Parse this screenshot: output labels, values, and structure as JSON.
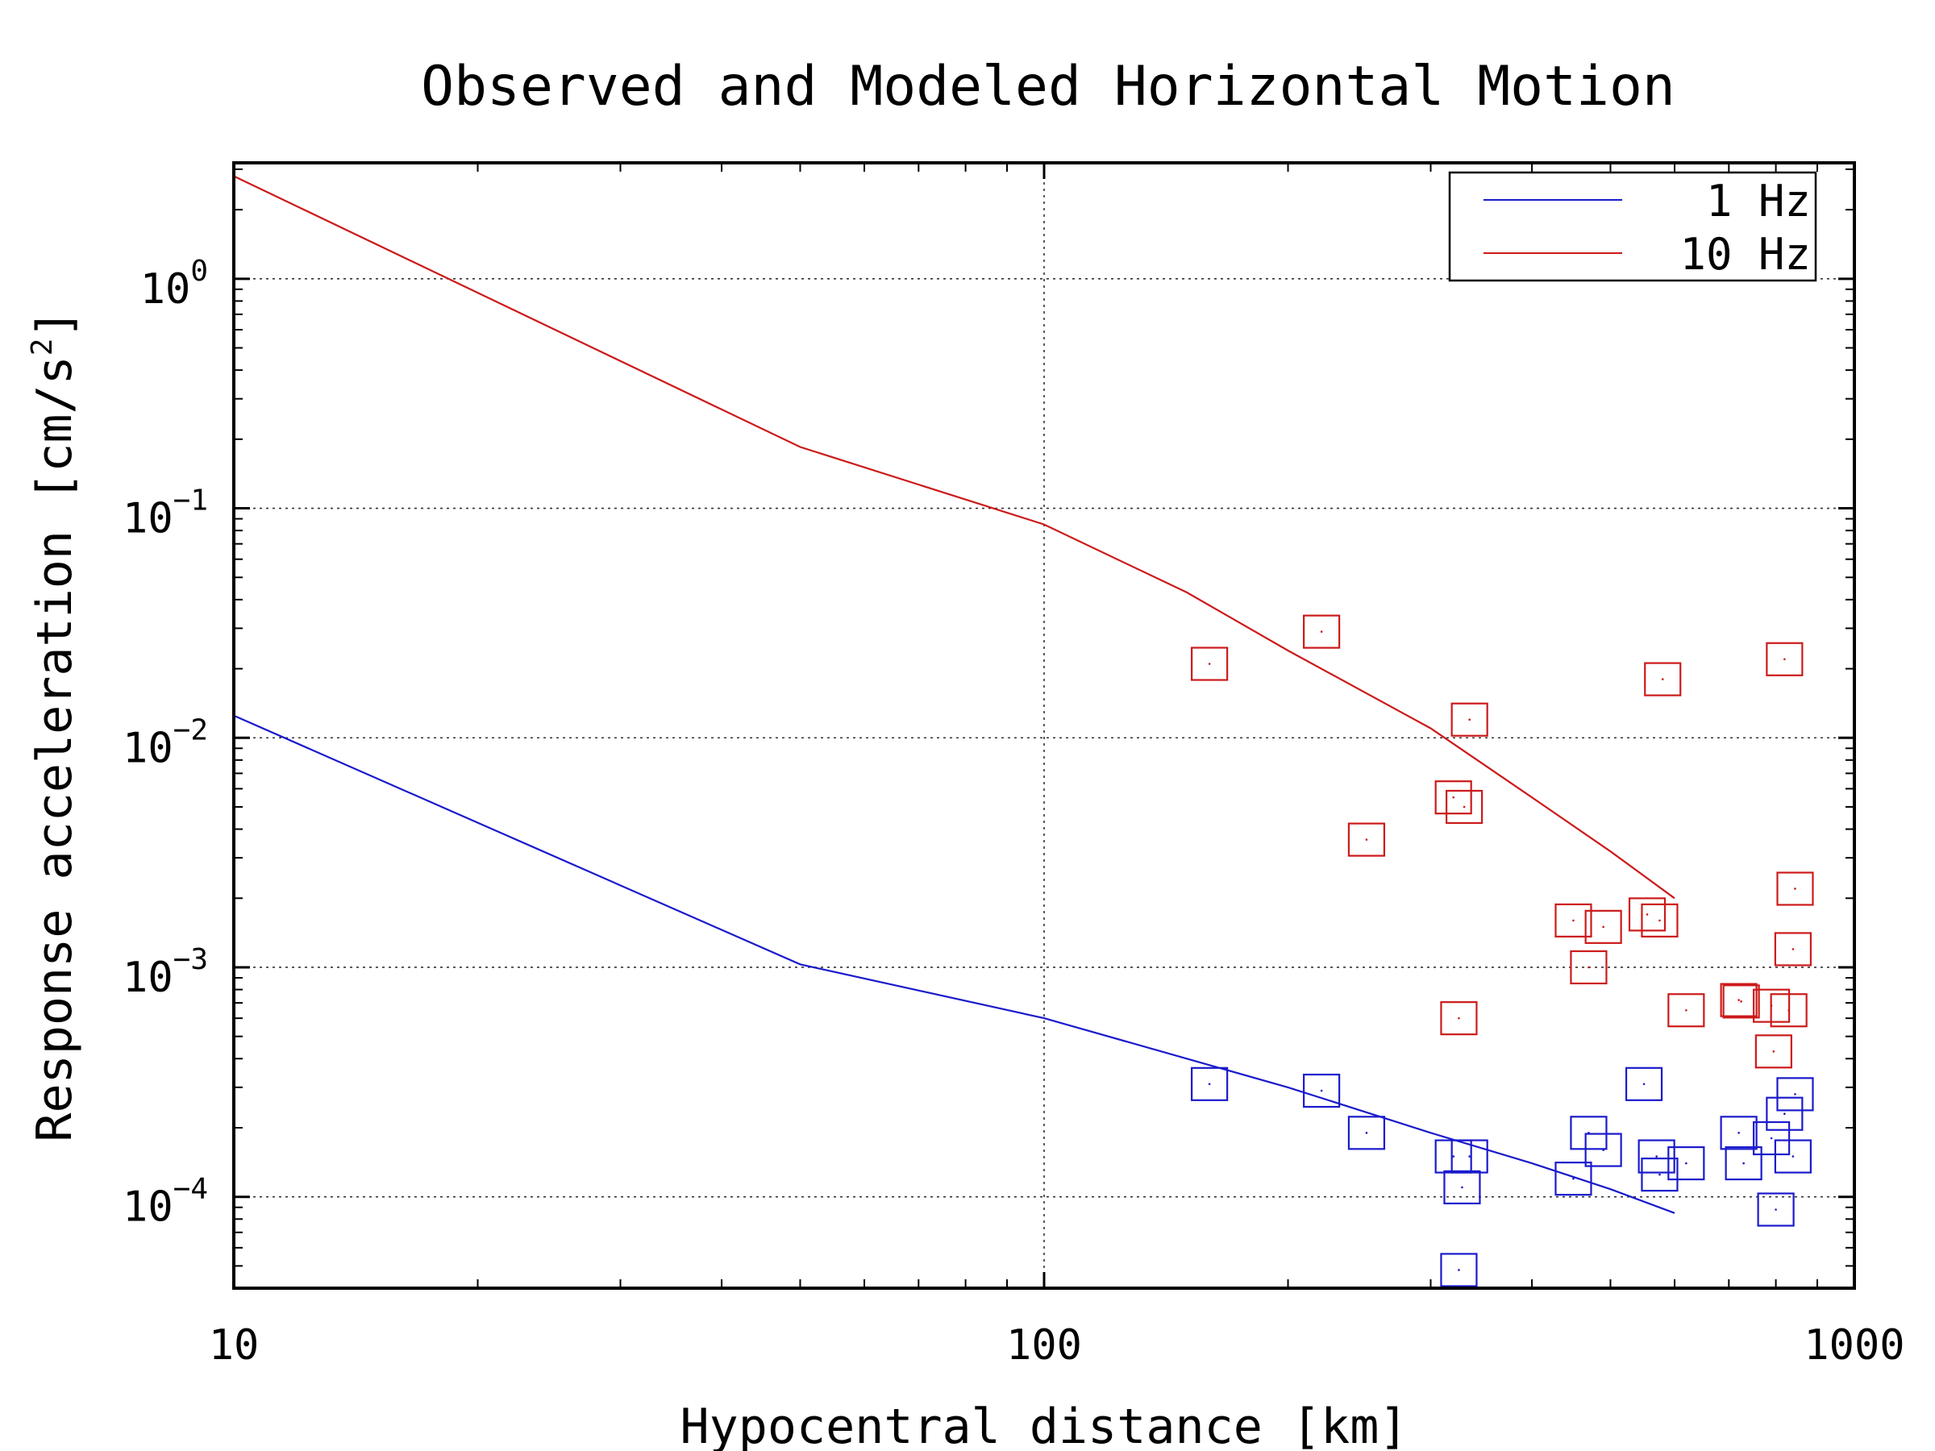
{
  "chart_data": {
    "type": "scatter",
    "title": "Observed and Modeled Horizontal Motion",
    "xlabel": "Hypocentral distance [km]",
    "ylabel": "Response acceleration [cm/s",
    "ylabel_sup": "2",
    "ylabel_end": "]",
    "xscale": "log",
    "yscale": "log",
    "xlim": [
      10,
      1000
    ],
    "ylim": [
      4e-05,
      3.2
    ],
    "grid": true,
    "legend_position": "top-right",
    "x_ticks": [
      {
        "value": 10,
        "label": "10"
      },
      {
        "value": 100,
        "label": "100"
      },
      {
        "value": 1000,
        "label": "1000"
      }
    ],
    "y_ticks": [
      {
        "value": 0.0001,
        "base": "10",
        "exp": "−4"
      },
      {
        "value": 0.001,
        "base": "10",
        "exp": "−3"
      },
      {
        "value": 0.01,
        "base": "10",
        "exp": "−2"
      },
      {
        "value": 0.1,
        "base": "10",
        "exp": "−1"
      },
      {
        "value": 1,
        "base": "10",
        "exp": "0"
      }
    ],
    "series": [
      {
        "name": "1 Hz",
        "color": "#1a1acc",
        "model": [
          [
            10,
            0.0125
          ],
          [
            50,
            0.00103
          ],
          [
            100,
            0.0006
          ],
          [
            150,
            0.0004
          ],
          [
            200,
            0.0003
          ],
          [
            300,
            0.00019
          ],
          [
            400,
            0.00014
          ],
          [
            500,
            0.000108
          ],
          [
            600,
            8.5e-05
          ]
        ],
        "observed": [
          [
            160,
            0.00031
          ],
          [
            220,
            0.00029
          ],
          [
            250,
            0.00019
          ],
          [
            320,
            0.00015
          ],
          [
            325,
            4.8e-05
          ],
          [
            328,
            0.00011
          ],
          [
            335,
            0.00015
          ],
          [
            450,
            0.00012
          ],
          [
            470,
            0.00019
          ],
          [
            490,
            0.00016
          ],
          [
            550,
            0.00031
          ],
          [
            570,
            0.00015
          ],
          [
            575,
            0.000125
          ],
          [
            620,
            0.00014
          ],
          [
            720,
            0.00019
          ],
          [
            730,
            0.00014
          ],
          [
            790,
            0.00018
          ],
          [
            800,
            8.8e-05
          ],
          [
            820,
            0.00023
          ],
          [
            840,
            0.00015
          ],
          [
            845,
            0.00028
          ]
        ]
      },
      {
        "name": "10 Hz",
        "color": "#cc1a1a",
        "model": [
          [
            10,
            2.8
          ],
          [
            50,
            0.185
          ],
          [
            100,
            0.085
          ],
          [
            150,
            0.043
          ],
          [
            200,
            0.024
          ],
          [
            300,
            0.011
          ],
          [
            400,
            0.0055
          ],
          [
            500,
            0.0032
          ],
          [
            600,
            0.002
          ]
        ],
        "observed": [
          [
            160,
            0.021
          ],
          [
            220,
            0.029
          ],
          [
            250,
            0.0036
          ],
          [
            320,
            0.0055
          ],
          [
            325,
            0.0006
          ],
          [
            330,
            0.005
          ],
          [
            335,
            0.012
          ],
          [
            450,
            0.0016
          ],
          [
            470,
            0.001
          ],
          [
            490,
            0.0015
          ],
          [
            555,
            0.0017
          ],
          [
            575,
            0.0016
          ],
          [
            580,
            0.018
          ],
          [
            620,
            0.00065
          ],
          [
            720,
            0.00072
          ],
          [
            725,
            0.00071
          ],
          [
            790,
            0.00068
          ],
          [
            795,
            0.00043
          ],
          [
            820,
            0.022
          ],
          [
            830,
            0.00065
          ],
          [
            840,
            0.0012
          ],
          [
            845,
            0.0022
          ]
        ]
      }
    ]
  }
}
